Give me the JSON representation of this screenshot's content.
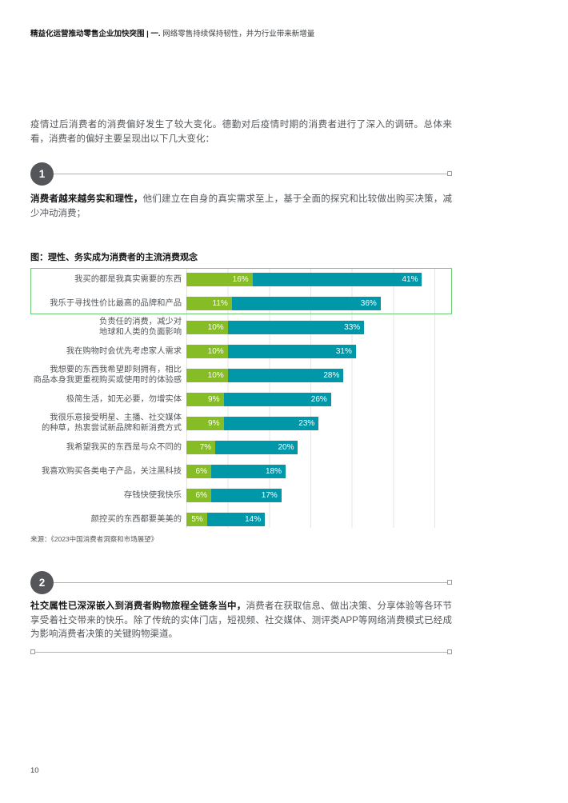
{
  "header": {
    "title_bold": "精益化运营推动零售企业加快突围 | 一.",
    "title_regular": " 网络零售持续保持韧性，并为行业带来新增量"
  },
  "intro_text": "疫情过后消费者的消费偏好发生了较大变化。德勤对后疫情时期的消费者进行了深入的调研。总体来看，消费者的偏好主要呈现出以下几大变化：",
  "sections": [
    {
      "number": "1",
      "lead": "消费者越来越务实和理性，",
      "body": "他们建立在自身的真实需求至上，基于全面的探究和比较做出购买决策，减少冲动消费；"
    },
    {
      "number": "2",
      "lead": "社交属性已深深嵌入到消费者购物旅程全链条当中，",
      "body": "消费者在获取信息、做出决策、分享体验等各环节享受着社交带来的快乐。除了传统的实体门店，短视频、社交媒体、测评类APP等网络消费模式已经成为影响消费者决策的关键购物渠道。"
    }
  ],
  "chart_data": {
    "type": "bar",
    "orientation": "horizontal",
    "stacked": true,
    "title": "图：理性、务实成为消费者的主流消费观念",
    "source": "来源：《2023中国消费者洞察和市场展望》",
    "categories": [
      "我买的都是我真实需要的东西",
      "我乐于寻找性价比最高的品牌和产品",
      "负责任的消费，减少对\n地球和人类的负面影响",
      "我在购物时会优先考虑家人需求",
      "我想要的东西我希望即刻拥有，相比\n商品本身我更重视购买或使用时的体验感",
      "极简生活，如无必要，勿增实体",
      "我很乐意接受明星、主播、社交媒体\n的种草，热衷尝试新品牌和新消费方式",
      "我希望我买的东西是与众不同的",
      "我喜欢购买各类电子产品，关注黑科技",
      "存钱快使我快乐",
      "颜控买的东西都要美美的"
    ],
    "series": [
      {
        "name": "green",
        "color": "#86bc25",
        "values": [
          16,
          11,
          10,
          10,
          10,
          9,
          9,
          7,
          6,
          6,
          5
        ]
      },
      {
        "name": "teal",
        "color": "#0097a9",
        "values": [
          41,
          36,
          33,
          31,
          28,
          26,
          23,
          20,
          18,
          17,
          14
        ]
      }
    ],
    "value_suffix": "%",
    "xlim": [
      0,
      60
    ],
    "gridline_step": 10,
    "grid": true,
    "legend": "none",
    "highlighted_rows": [
      0,
      1
    ],
    "colors": {
      "highlight_border": "#6dc973"
    }
  },
  "footer": {
    "page_number": "10"
  }
}
